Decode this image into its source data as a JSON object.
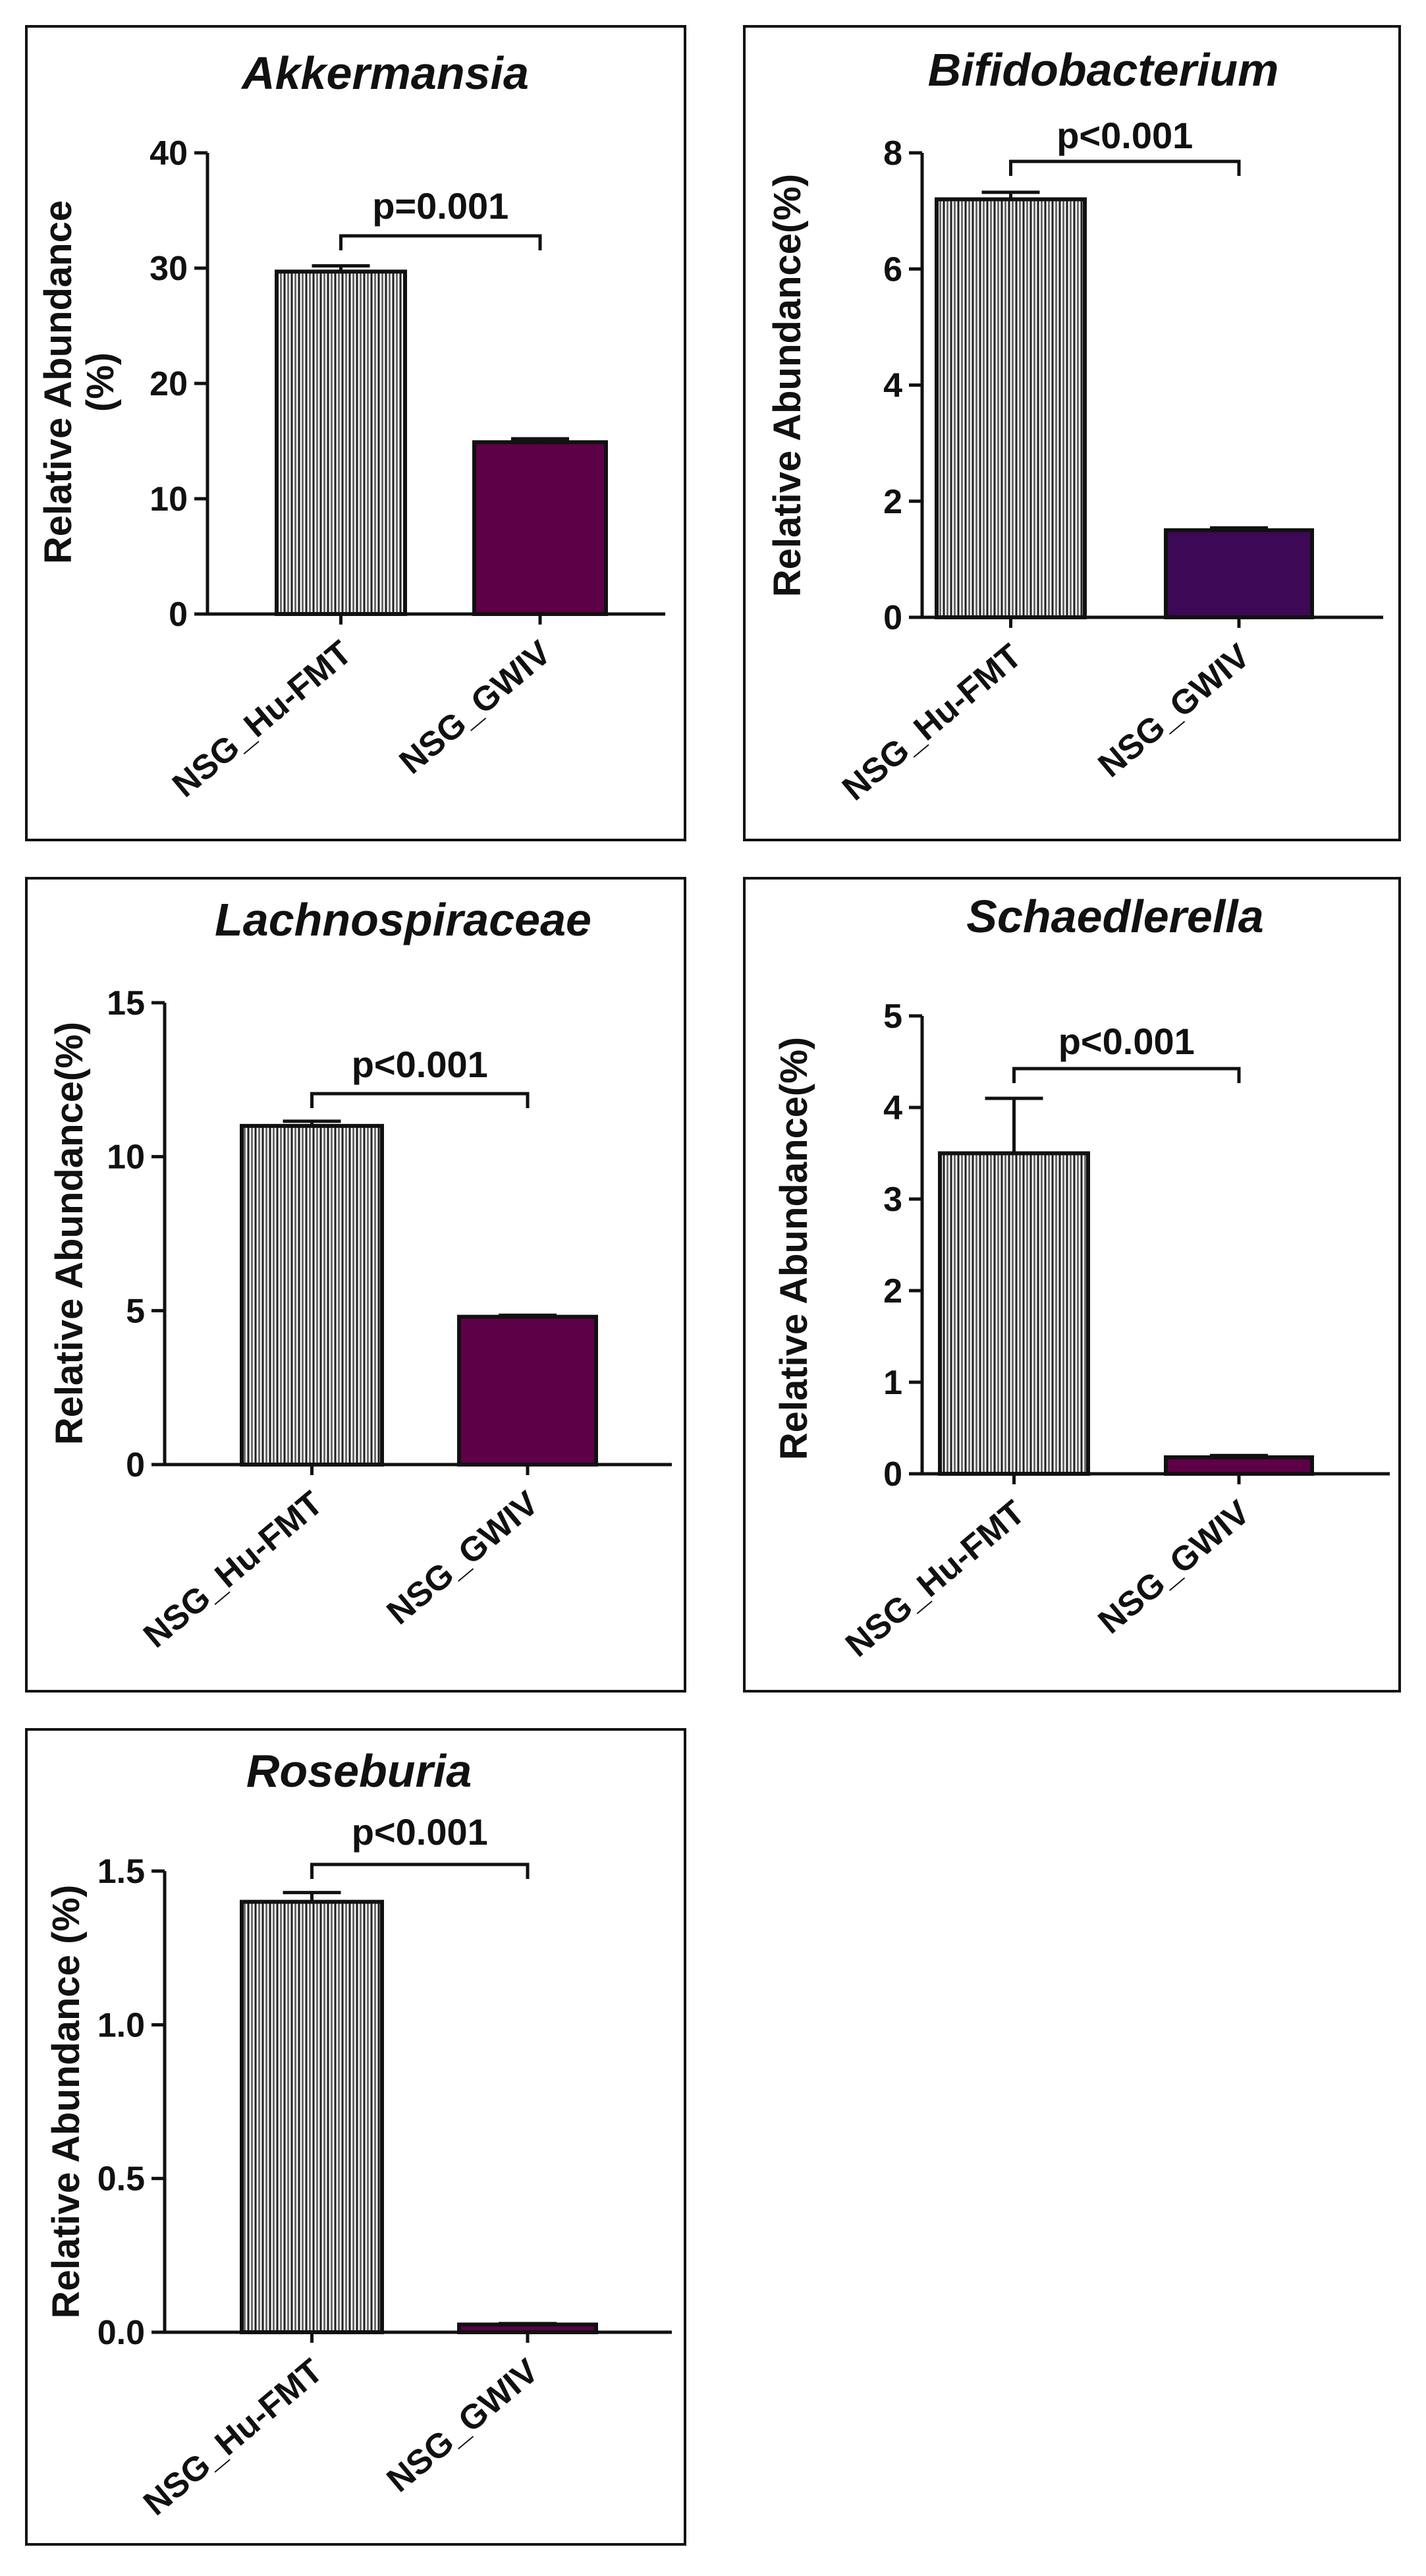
{
  "chart_data": [
    {
      "type": "bar",
      "title": "Akkermansia",
      "ylabel_lines": [
        "Relative Abundance",
        "(%)"
      ],
      "categories": [
        "NSG_Hu-FMT",
        "NSG_GWIV"
      ],
      "values": [
        29.7,
        14.9
      ],
      "errors": [
        0.5,
        0.3
      ],
      "ylim": [
        0,
        40
      ],
      "yticks": [
        0,
        10,
        20,
        30,
        40
      ],
      "ytick_labels": [
        "0",
        "10",
        "20",
        "30",
        "40"
      ],
      "bar_fills": [
        "hatched",
        "#5e0048"
      ],
      "significance": "p=0.001"
    },
    {
      "type": "bar",
      "title": "Bifidobacterium",
      "ylabel_lines": [
        "Relative Abundance(%)"
      ],
      "categories": [
        "NSG_Hu-FMT",
        "NSG_GWIV"
      ],
      "values": [
        7.2,
        1.5
      ],
      "errors": [
        0.12,
        0.04
      ],
      "ylim": [
        0,
        8
      ],
      "yticks": [
        0,
        2,
        4,
        6,
        8
      ],
      "ytick_labels": [
        "0",
        "2",
        "4",
        "6",
        "8"
      ],
      "bar_fills": [
        "hatched",
        "#3d0856"
      ],
      "significance": "p<0.001"
    },
    {
      "type": "bar",
      "title": "Lachnospiraceae",
      "ylabel_lines": [
        "Relative Abundance(%)"
      ],
      "categories": [
        "NSG_Hu-FMT",
        "NSG_GWIV"
      ],
      "values": [
        11.0,
        4.8
      ],
      "errors": [
        0.15,
        0.05
      ],
      "ylim": [
        0,
        15
      ],
      "yticks": [
        0,
        5,
        10,
        15
      ],
      "ytick_labels": [
        "0",
        "5",
        "10",
        "15"
      ],
      "bar_fills": [
        "hatched",
        "#5e0048"
      ],
      "significance": "p<0.001"
    },
    {
      "type": "bar",
      "title": "Schaedlerella",
      "ylabel_lines": [
        "Relative Abundance(%)"
      ],
      "categories": [
        "NSG_Hu-FMT",
        "NSG_GWIV"
      ],
      "values": [
        3.5,
        0.18
      ],
      "errors": [
        0.6,
        0.02
      ],
      "ylim": [
        0,
        5
      ],
      "yticks": [
        0,
        1,
        2,
        3,
        4,
        5
      ],
      "ytick_labels": [
        "0",
        "1",
        "2",
        "3",
        "4",
        "5"
      ],
      "bar_fills": [
        "hatched",
        "#5e0048"
      ],
      "significance": "p<0.001"
    },
    {
      "type": "bar",
      "title": "Roseburia",
      "ylabel_lines": [
        "Relative Abundance (%)"
      ],
      "categories": [
        "NSG_Hu-FMT",
        "NSG_GWIV"
      ],
      "values": [
        1.4,
        0.025
      ],
      "errors": [
        0.03,
        0.003
      ],
      "ylim": [
        0,
        1.5
      ],
      "yticks": [
        0,
        0.5,
        1.0,
        1.5
      ],
      "ytick_labels": [
        "0.0",
        "0.5",
        "1.0",
        "1.5"
      ],
      "bar_fills": [
        "hatched",
        "#5e0048"
      ],
      "significance": "p<0.001"
    }
  ]
}
